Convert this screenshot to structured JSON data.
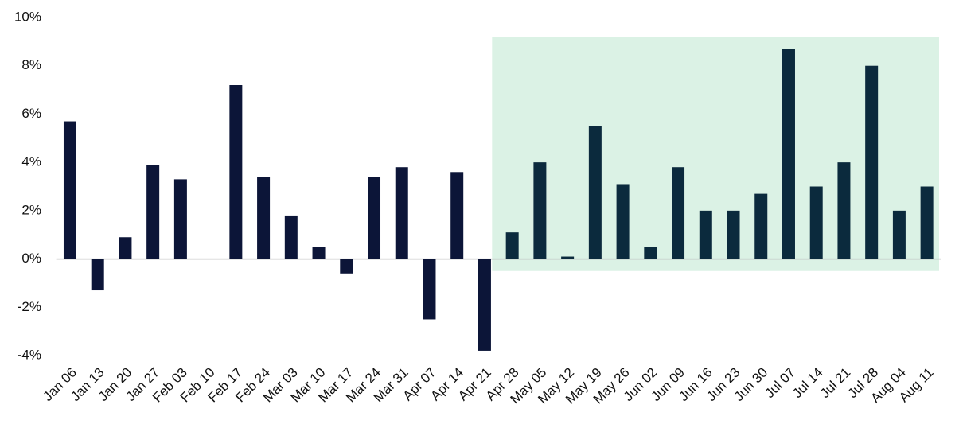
{
  "chart_data": {
    "type": "bar",
    "categories": [
      "Jan 06",
      "Jan 13",
      "Jan 20",
      "Jan 27",
      "Feb 03",
      "Feb 10",
      "Feb 17",
      "Feb 24",
      "Mar 03",
      "Mar 10",
      "Mar 17",
      "Mar 24",
      "Mar 31",
      "Apr 07",
      "Apr 14",
      "Apr 21",
      "Apr 28",
      "May 05",
      "May 12",
      "May 19",
      "May 26",
      "Jun 02",
      "Jun 09",
      "Jun 16",
      "Jun 23",
      "Jun 30",
      "Jul 07",
      "Jul 14",
      "Jul 21",
      "Jul 28",
      "Aug 04",
      "Aug 11"
    ],
    "values": [
      5.7,
      -1.3,
      0.9,
      3.9,
      3.3,
      0,
      7.2,
      3.4,
      1.8,
      0.5,
      -0.6,
      3.4,
      3.8,
      -2.5,
      3.6,
      -3.8,
      1.1,
      4.0,
      0.1,
      5.5,
      3.1,
      0.5,
      3.8,
      2.0,
      2.0,
      2.7,
      8.7,
      3.0,
      4.0,
      8.0,
      2.0,
      3.0
    ],
    "color": "#0c1538",
    "ylim": [
      -4,
      10
    ],
    "yticks": [
      {
        "value": -4,
        "label": "-4%"
      },
      {
        "value": -2,
        "label": "-2%"
      },
      {
        "value": 0,
        "label": "0%"
      },
      {
        "value": 2,
        "label": "2%"
      },
      {
        "value": 4,
        "label": "4%"
      },
      {
        "value": 6,
        "label": "6%"
      },
      {
        "value": 8,
        "label": "8%"
      },
      {
        "value": 10,
        "label": "10%"
      }
    ],
    "grid": false,
    "highlight": {
      "start": "Apr 28",
      "end": "Aug 11",
      "ylim": [
        -0.5,
        9.2
      ],
      "color": "#dbf2e5",
      "bar_color": "#0b2a3d"
    }
  }
}
